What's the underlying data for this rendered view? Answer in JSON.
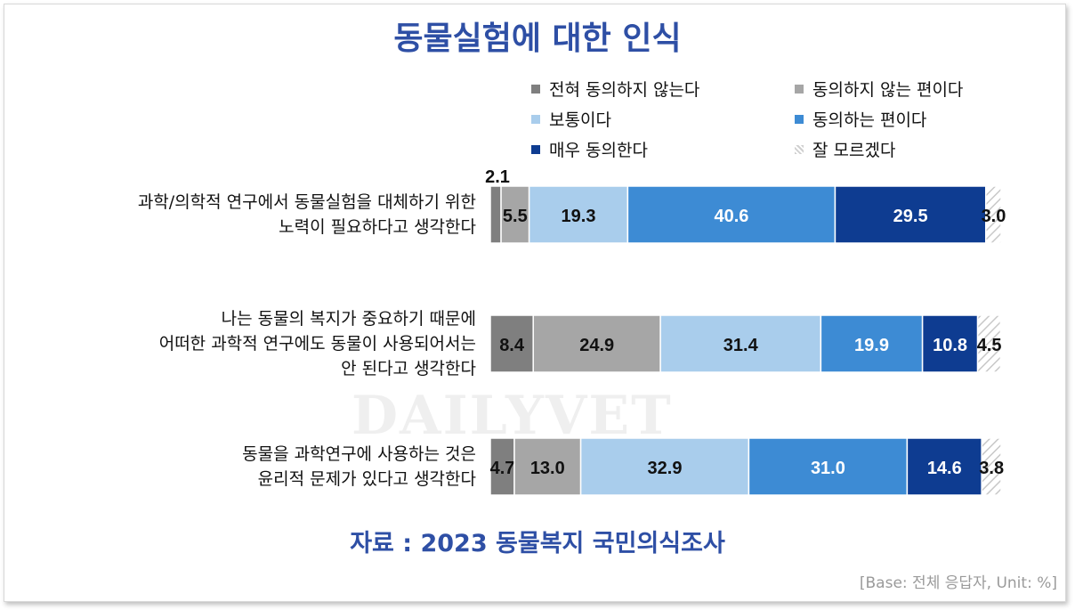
{
  "title": "동물실험에 대한 인식",
  "source": "자료 : 2023 동물복지 국민의식조사",
  "base_note": "[Base: 전체 응답자, Unit: %]",
  "watermark": "DAILYVET",
  "colors": {
    "title": "#2e4fa5",
    "series": [
      "#7f7f7f",
      "#a6a6a6",
      "#a9cdec",
      "#3d8bd4",
      "#0e3c91",
      "#d9d9d9"
    ]
  },
  "chart_data": {
    "type": "bar",
    "orientation": "horizontal",
    "stacked": true,
    "unit": "%",
    "categories": [
      [
        "과학/의학적 연구에서 동물실험을 대체하기 위한",
        "노력이 필요하다고 생각한다"
      ],
      [
        "나는 동물의 복지가 중요하기 때문에",
        "어떠한 과학적 연구에도 동물이 사용되어서는",
        "안 된다고 생각한다"
      ],
      [
        "동물을 과학연구에 사용하는 것은",
        "윤리적 문제가 있다고 생각한다"
      ]
    ],
    "series": [
      {
        "name": "전혀 동의하지 않는다",
        "values": [
          2.1,
          8.4,
          4.7
        ]
      },
      {
        "name": "동의하지 않는 편이다",
        "values": [
          5.5,
          24.9,
          13.0
        ]
      },
      {
        "name": "보통이다",
        "values": [
          19.3,
          31.4,
          32.9
        ]
      },
      {
        "name": "동의하는 편이다",
        "values": [
          40.6,
          19.9,
          31.0
        ]
      },
      {
        "name": "매우 동의한다",
        "values": [
          29.5,
          10.8,
          14.6
        ]
      },
      {
        "name": "잘 모르겠다",
        "values": [
          3.0,
          4.5,
          3.8
        ]
      }
    ],
    "legend_position": "top"
  }
}
